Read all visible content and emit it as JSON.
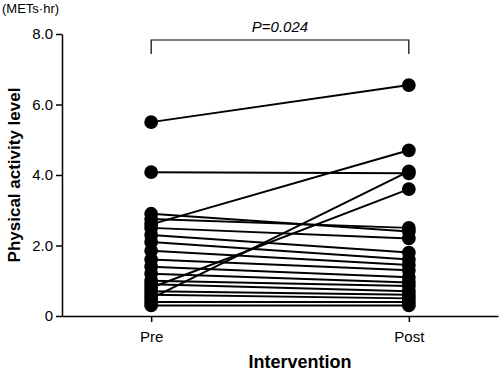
{
  "chart_data": {
    "type": "line",
    "x_label": "Intervention",
    "y_label": "Physical activity level",
    "y_units": "(METs·hr)",
    "annotation": "P=0.024",
    "categories": [
      "Pre",
      "Post"
    ],
    "color": "#000000",
    "marker": "circle",
    "ylim": [
      0,
      8
    ],
    "yticks": [
      0,
      {
        "value": 2,
        "label": "2.0"
      },
      {
        "value": 4,
        "label": "4.0"
      },
      {
        "value": 6,
        "label": "6.0"
      },
      {
        "value": 8,
        "label": "8.0"
      }
    ],
    "series": [
      {
        "values": [
          5.5,
          6.55
        ]
      },
      {
        "values": [
          4.08,
          4.05
        ]
      },
      {
        "values": [
          2.6,
          4.7
        ]
      },
      {
        "values": [
          0.5,
          4.1
        ]
      },
      {
        "values": [
          0.8,
          3.6
        ]
      },
      {
        "values": [
          2.9,
          2.4
        ]
      },
      {
        "values": [
          2.75,
          2.5
        ]
      },
      {
        "values": [
          2.5,
          2.2
        ]
      },
      {
        "values": [
          2.3,
          1.8
        ]
      },
      {
        "values": [
          2.1,
          1.6
        ]
      },
      {
        "values": [
          1.85,
          1.45
        ]
      },
      {
        "values": [
          1.6,
          1.3
        ]
      },
      {
        "values": [
          1.4,
          1.1
        ]
      },
      {
        "values": [
          1.2,
          0.95
        ]
      },
      {
        "values": [
          1.0,
          0.85
        ]
      },
      {
        "values": [
          0.9,
          0.7
        ]
      },
      {
        "values": [
          0.7,
          0.6
        ]
      },
      {
        "values": [
          0.6,
          0.5
        ]
      },
      {
        "values": [
          0.4,
          0.4
        ]
      },
      {
        "values": [
          0.3,
          0.3
        ]
      }
    ]
  }
}
